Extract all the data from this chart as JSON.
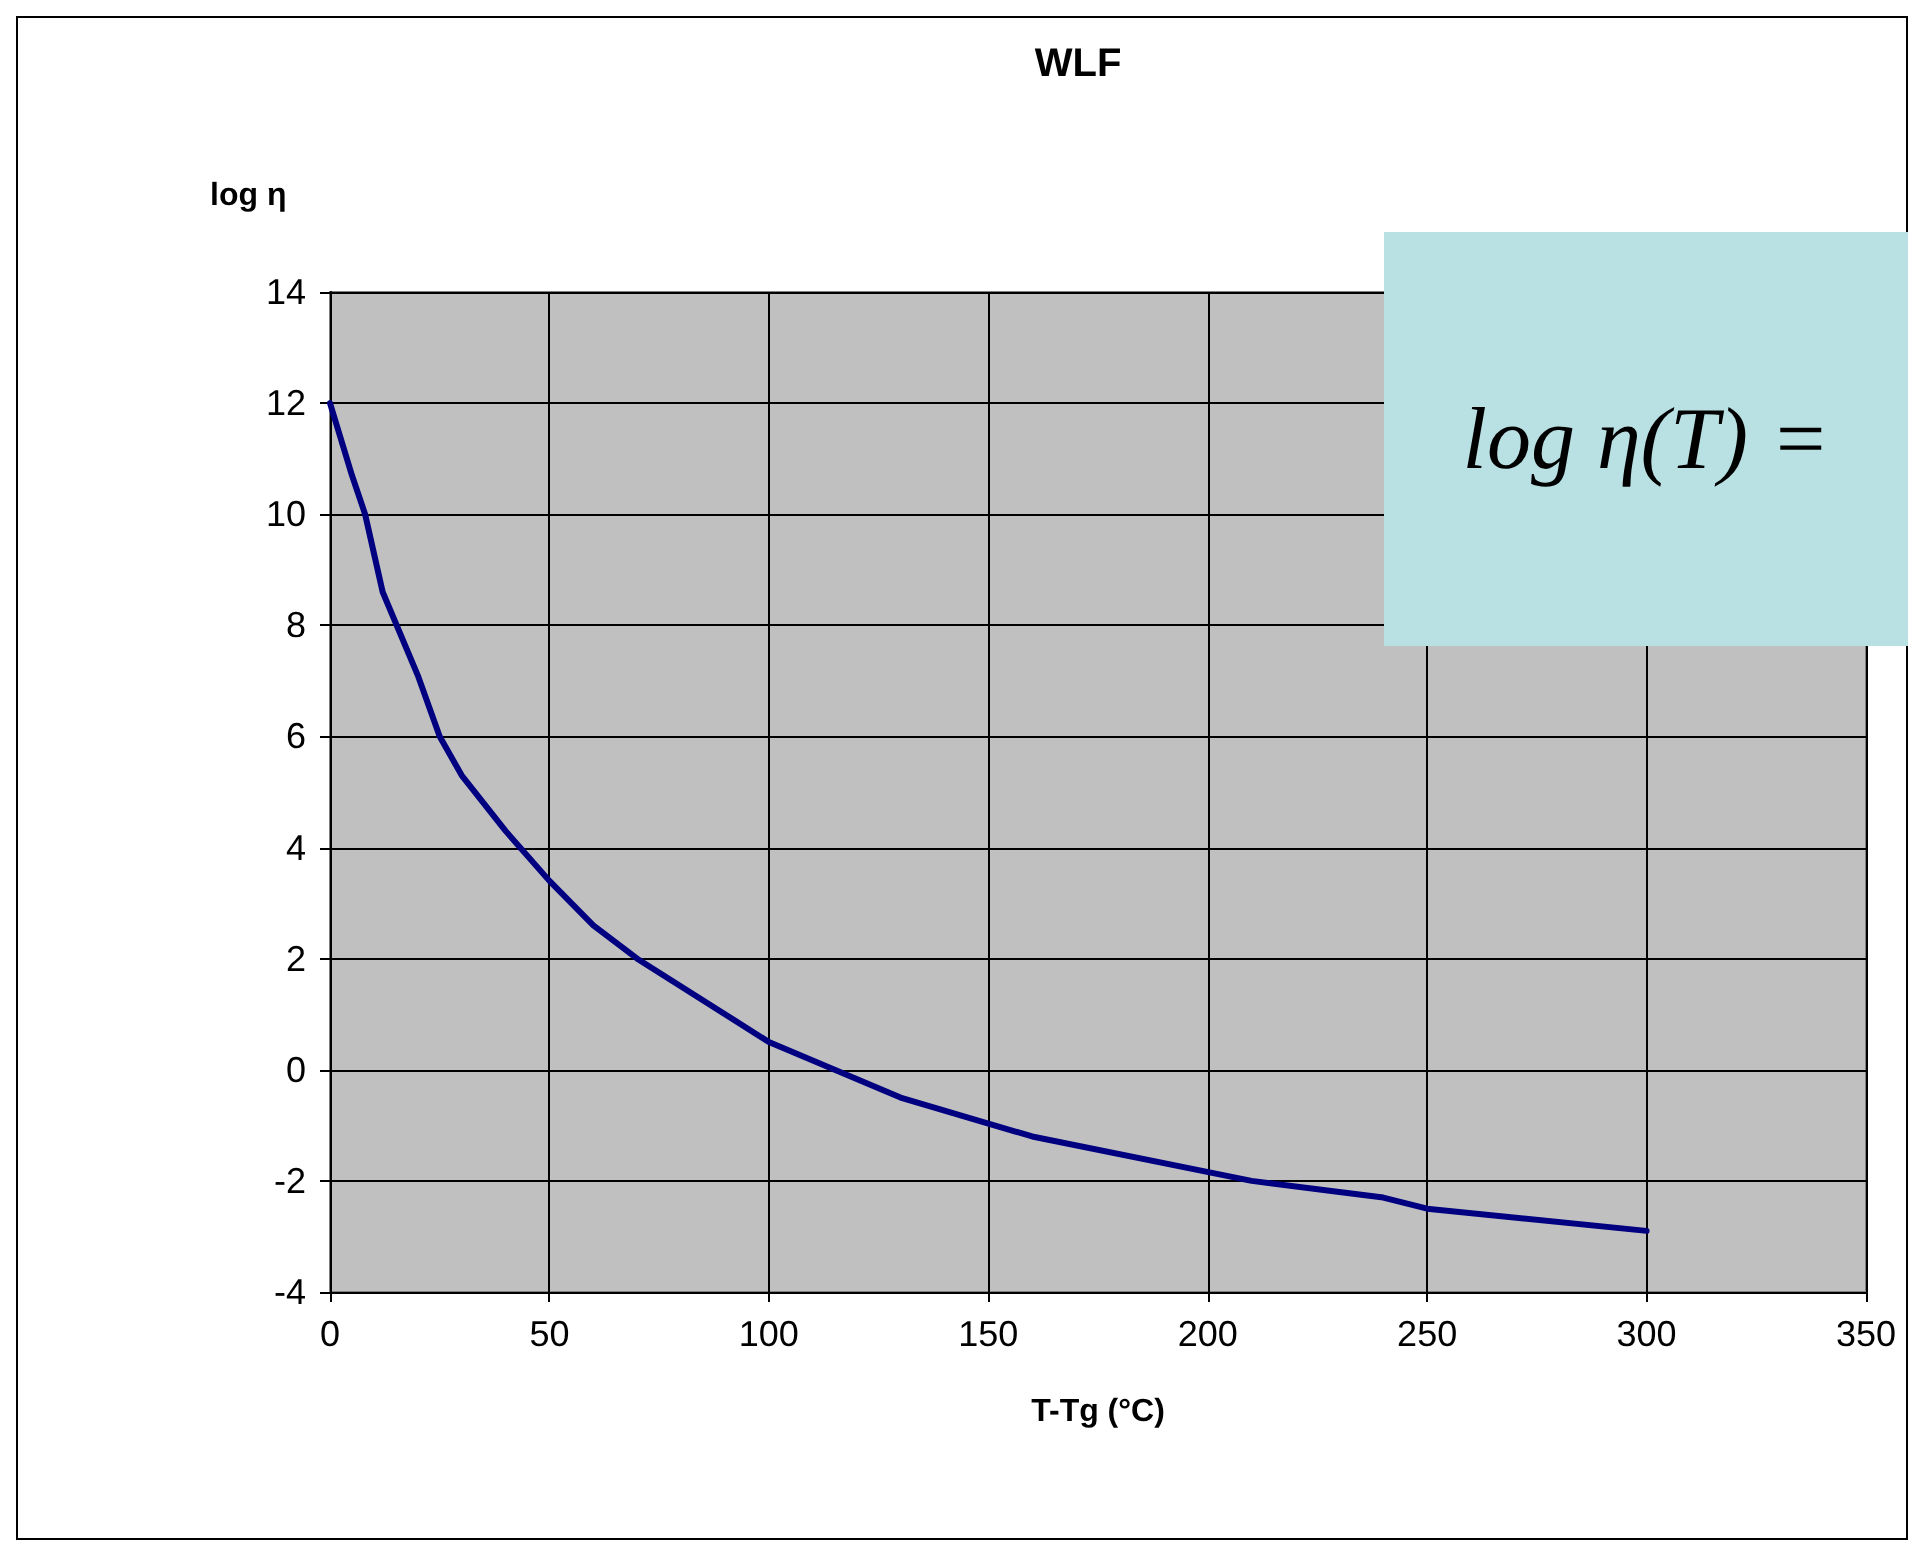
{
  "chart_data": {
    "type": "line",
    "title": "WLF",
    "xlabel": "T-Tg (°C)",
    "ylabel": "log η",
    "annotations": [
      "log η(T) ="
    ],
    "x": [
      0,
      5,
      8,
      12,
      20,
      25,
      30,
      40,
      50,
      60,
      70,
      80,
      90,
      100,
      130,
      160,
      210,
      230,
      240,
      250,
      300
    ],
    "series": [
      {
        "color": "#000080",
        "values": [
          12,
          10.7,
          10.0,
          8.6,
          7.1,
          6.0,
          5.3,
          4.3,
          3.4,
          2.6,
          2.0,
          1.5,
          1.0,
          0.5,
          -0.5,
          -1.2,
          -2.0,
          -2.2,
          -2.3,
          -2.5,
          -2.9
        ]
      }
    ],
    "xlim": [
      0,
      350
    ],
    "xticks": [
      0,
      50,
      100,
      150,
      200,
      250,
      300,
      350
    ],
    "ylim": [
      -4,
      14
    ],
    "yticks": [
      -4,
      -2,
      0,
      2,
      4,
      6,
      8,
      10,
      12,
      14
    ],
    "grid": true,
    "marker": "none",
    "line_style": "solid"
  }
}
